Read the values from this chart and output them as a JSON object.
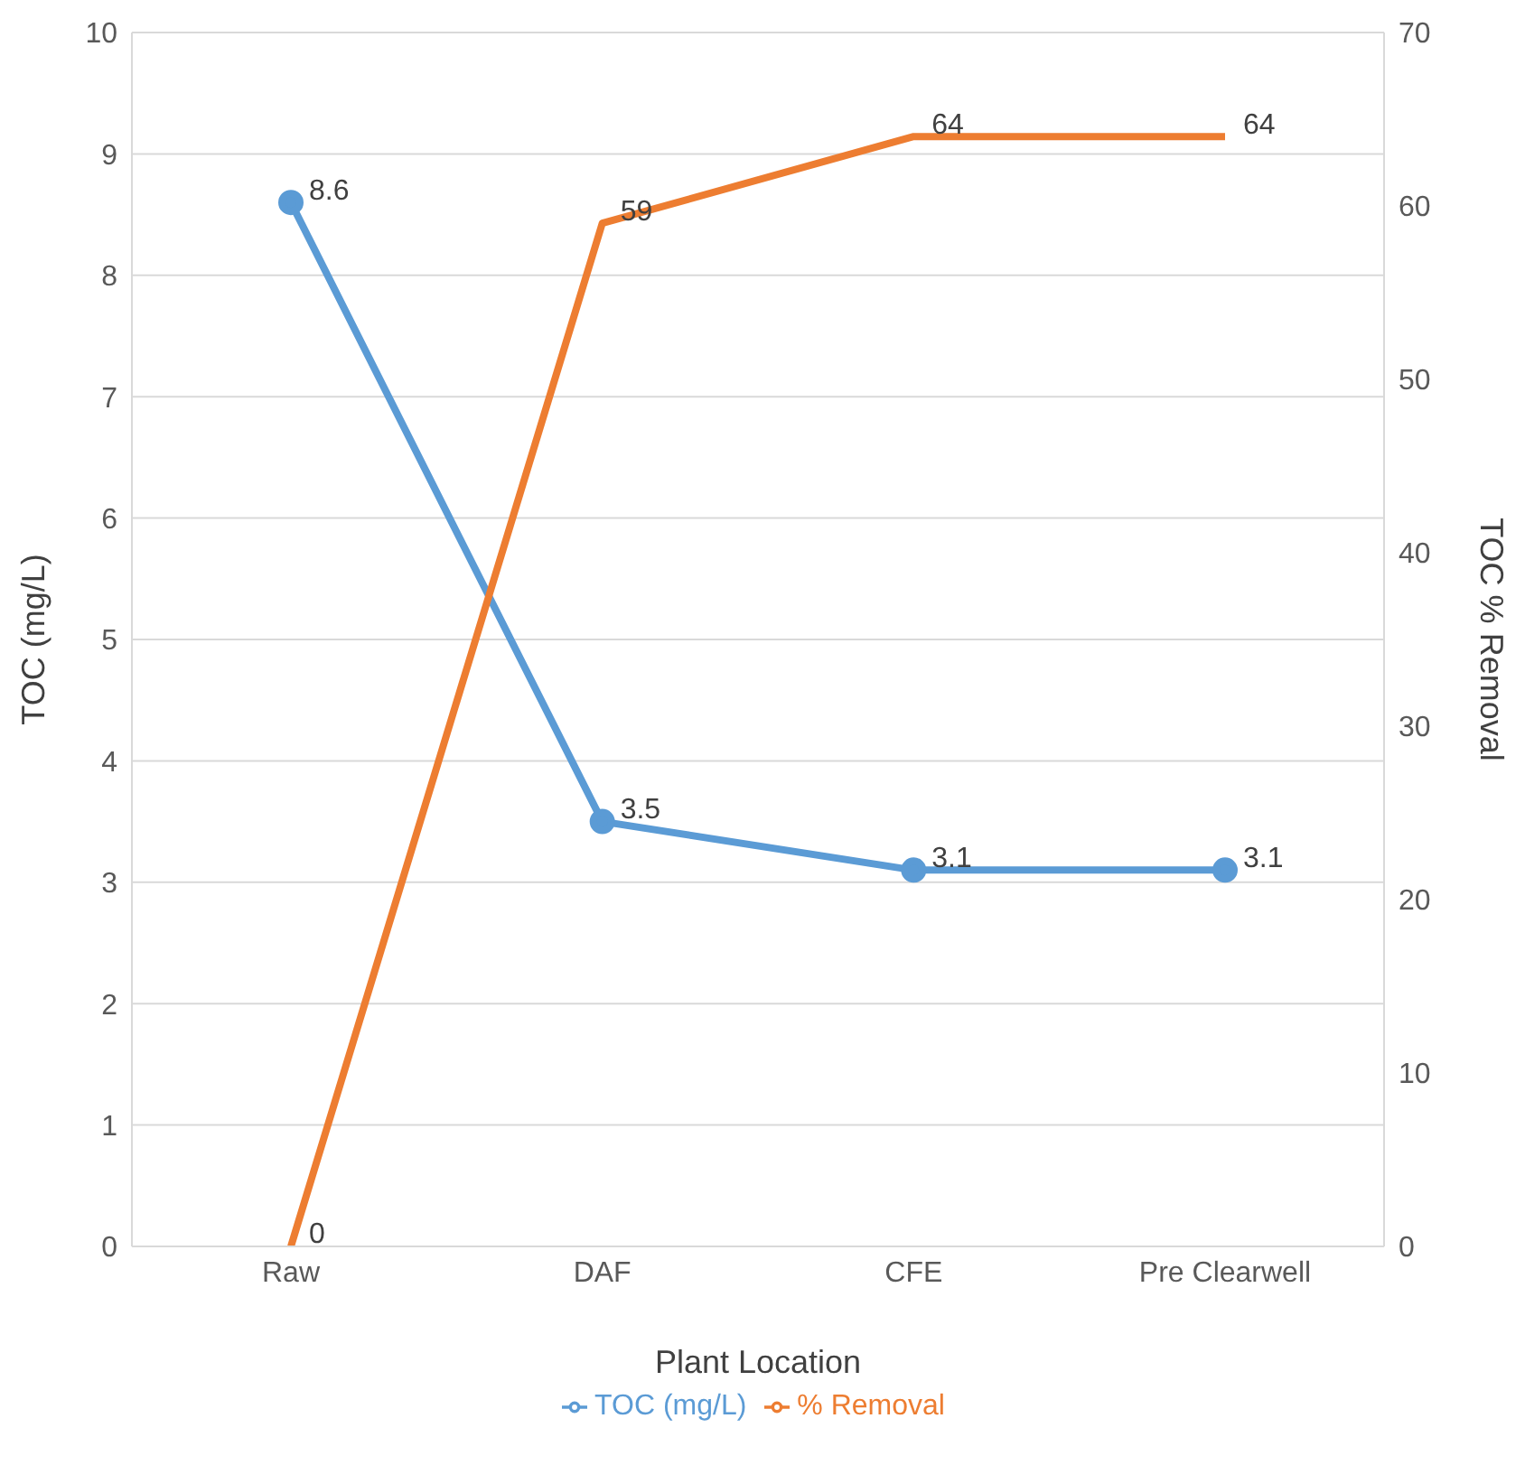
{
  "chart_data": {
    "type": "line",
    "xlabel": "Plant Location",
    "ylabel": "TOC (mg/L)",
    "y2label": "TOC % Removal",
    "categories": [
      "Raw",
      "DAF",
      "CFE",
      "Pre Clearwell"
    ],
    "series": [
      {
        "name": "TOC (mg/L)",
        "color": "#5b9bd5",
        "values": [
          8.6,
          3.5,
          3.1,
          3.1
        ],
        "marker": "circle"
      },
      {
        "name": "% Removal",
        "color": "#ed7d31",
        "values": [
          0,
          59,
          64,
          64
        ],
        "axis": "y2",
        "marker": "none"
      }
    ],
    "ylim": [
      0,
      10
    ],
    "yticks": [
      0,
      1,
      2,
      3,
      4,
      5,
      6,
      7,
      8,
      9,
      10
    ],
    "y2lim": [
      0,
      70
    ],
    "y2ticks": [
      0,
      10,
      20,
      30,
      40,
      50,
      60,
      70
    ],
    "grid": "y",
    "legend": "bottom",
    "data_labels": true,
    "line_style": "solid"
  }
}
